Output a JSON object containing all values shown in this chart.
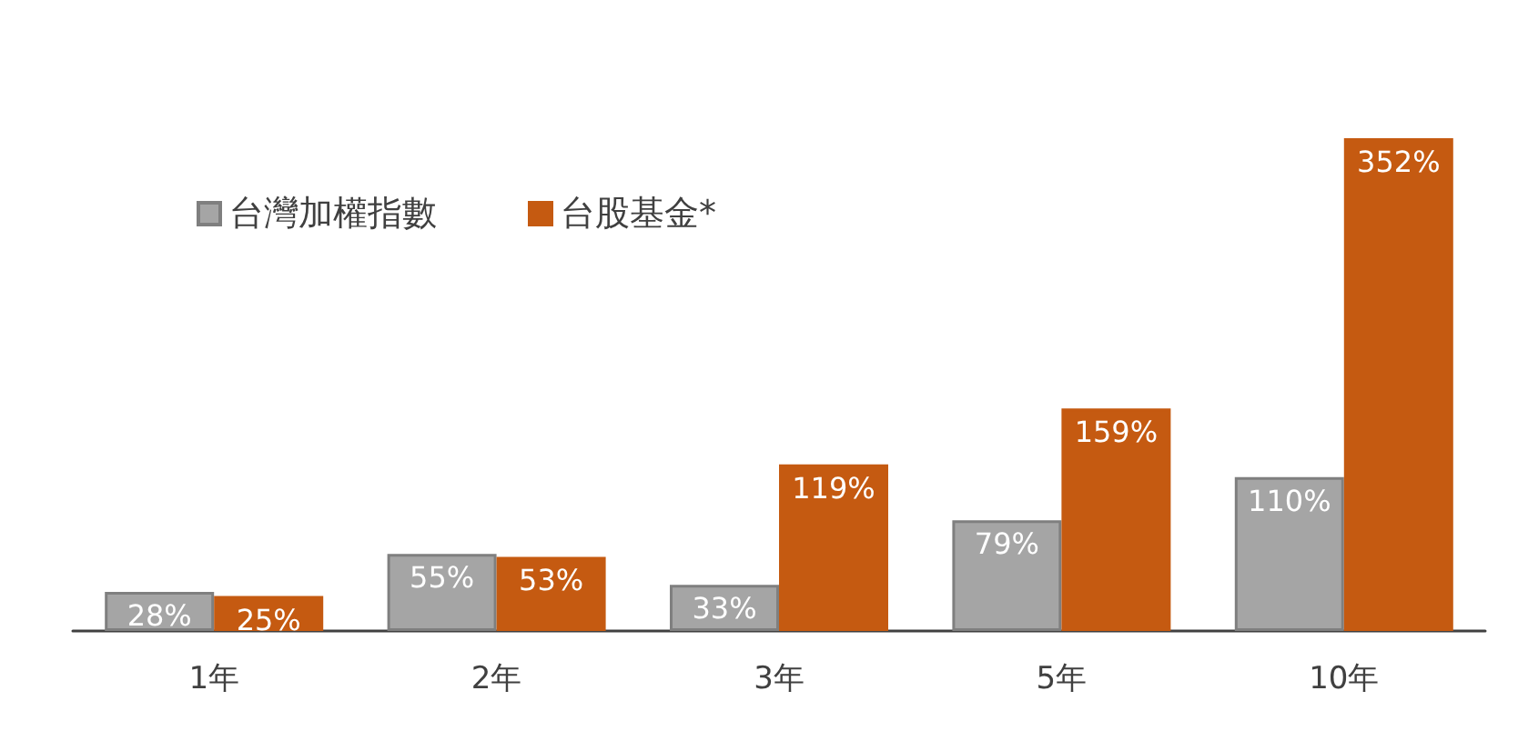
{
  "chart_data": {
    "type": "bar",
    "categories": [
      "1年",
      "2年",
      "3年",
      "5年",
      "10年"
    ],
    "series": [
      {
        "name": "台灣加權指數",
        "color": "#a5a5a5",
        "values": [
          28,
          55,
          33,
          79,
          110
        ],
        "value_labels": [
          "28%",
          "55%",
          "33%",
          "79%",
          "110%"
        ]
      },
      {
        "name": "台股基金*",
        "color": "#c55a11",
        "values": [
          25,
          53,
          119,
          159,
          352
        ],
        "value_labels": [
          "25%",
          "53%",
          "119%",
          "159%",
          "352%"
        ]
      }
    ],
    "legend": "top left"
  }
}
